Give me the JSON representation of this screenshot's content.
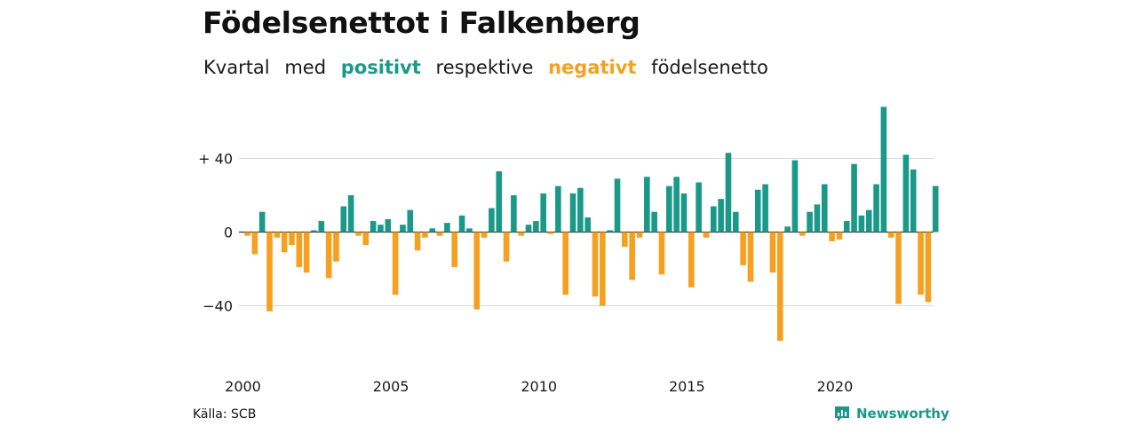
{
  "title": "Födelsenettot i Falkenberg",
  "subtitle": {
    "part1": "Kvartal",
    "part2": "med",
    "positive": "positivt",
    "part3": "respektive",
    "negative": "negativt",
    "part4": "födelsenetto"
  },
  "colors": {
    "positive": "#1a9988",
    "negative": "#f5a020",
    "grid": "#d9d9d9",
    "zero_line": "#333333"
  },
  "source": "Källa: SCB",
  "brand": {
    "name": "Newsworthy",
    "icon": "newsworthy-logo-icon"
  },
  "chart_data": {
    "type": "bar",
    "x_start": "2000 Q1",
    "frequency": "quarterly",
    "values": [
      -2,
      -12,
      11,
      -43,
      -3,
      -11,
      -7,
      -19,
      -22,
      1,
      6,
      -25,
      -16,
      14,
      20,
      -2,
      -7,
      6,
      4,
      7,
      -34,
      4,
      12,
      -10,
      -3,
      2,
      -2,
      5,
      -19,
      9,
      2,
      -42,
      -3,
      13,
      33,
      -16,
      20,
      -2,
      4,
      6,
      21,
      -1,
      25,
      -34,
      21,
      24,
      8,
      -35,
      -40,
      1,
      29,
      -8,
      -26,
      -3,
      30,
      11,
      -23,
      25,
      30,
      21,
      -30,
      27,
      -3,
      14,
      18,
      43,
      11,
      -18,
      -27,
      23,
      26,
      -22,
      -59,
      3,
      39,
      -2,
      11,
      15,
      26,
      -5,
      -4,
      6,
      37,
      9,
      12,
      26,
      68,
      -3,
      -39,
      42,
      34,
      -34,
      -38,
      25
    ],
    "ytick_values": [
      -40,
      0,
      40
    ],
    "ytick_labels": [
      "−40",
      "0",
      "+ 40"
    ],
    "xtick_labels": [
      "2000",
      "2005",
      "2010",
      "2015",
      "2020"
    ],
    "ylim": [
      -60,
      70
    ],
    "grid": true,
    "legend": "in subtitle"
  }
}
